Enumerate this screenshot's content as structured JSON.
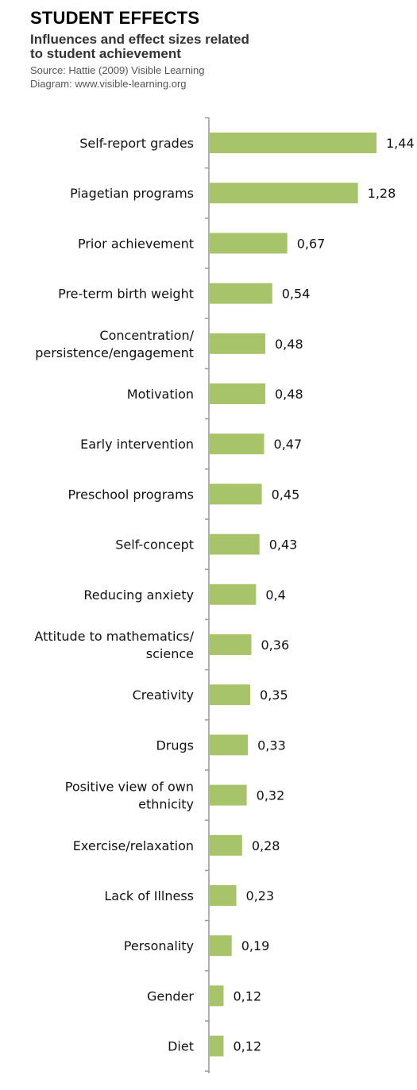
{
  "header": {
    "title": "STUDENT EFFECTS",
    "subtitle_line1": "Influences and effect sizes related",
    "subtitle_line2": "to student achievement",
    "source_line1": "Source: Hattie (2009) Visible Learning",
    "source_line2": "Diagram: www.visible-learning.org"
  },
  "colors": {
    "bar": "#a8c46a",
    "axis": "#999999"
  },
  "chart_data": {
    "type": "bar",
    "orientation": "horizontal",
    "title": "STUDENT EFFECTS",
    "subtitle": "Influences and effect sizes related to student achievement",
    "categories": [
      [
        "Self-report grades"
      ],
      [
        "Piagetian programs"
      ],
      [
        "Prior achievement"
      ],
      [
        "Pre-term birth weight"
      ],
      [
        "Concentration/",
        "persistence/engagement"
      ],
      [
        "Motivation"
      ],
      [
        "Early intervention"
      ],
      [
        "Preschool programs"
      ],
      [
        "Self-concept"
      ],
      [
        "Reducing anxiety"
      ],
      [
        "Attitude to mathematics/",
        "science"
      ],
      [
        "Creativity"
      ],
      [
        "Drugs"
      ],
      [
        "Positive view of own",
        "ethnicity"
      ],
      [
        "Exercise/relaxation"
      ],
      [
        "Lack of Illness"
      ],
      [
        "Personality"
      ],
      [
        "Gender"
      ],
      [
        "Diet"
      ]
    ],
    "values": [
      1.44,
      1.28,
      0.67,
      0.54,
      0.48,
      0.48,
      0.47,
      0.45,
      0.43,
      0.4,
      0.36,
      0.35,
      0.33,
      0.32,
      0.28,
      0.23,
      0.19,
      0.12,
      0.12
    ],
    "value_labels": [
      "1,44",
      "1,28",
      "0,67",
      "0,54",
      "0,48",
      "0,48",
      "0,47",
      "0,45",
      "0,43",
      "0,4",
      "0,36",
      "0,35",
      "0,33",
      "0,32",
      "0,28",
      "0,23",
      "0,19",
      "0,12",
      "0,12"
    ],
    "xlim": [
      0,
      1.5
    ],
    "grid": false,
    "legend": "none"
  }
}
